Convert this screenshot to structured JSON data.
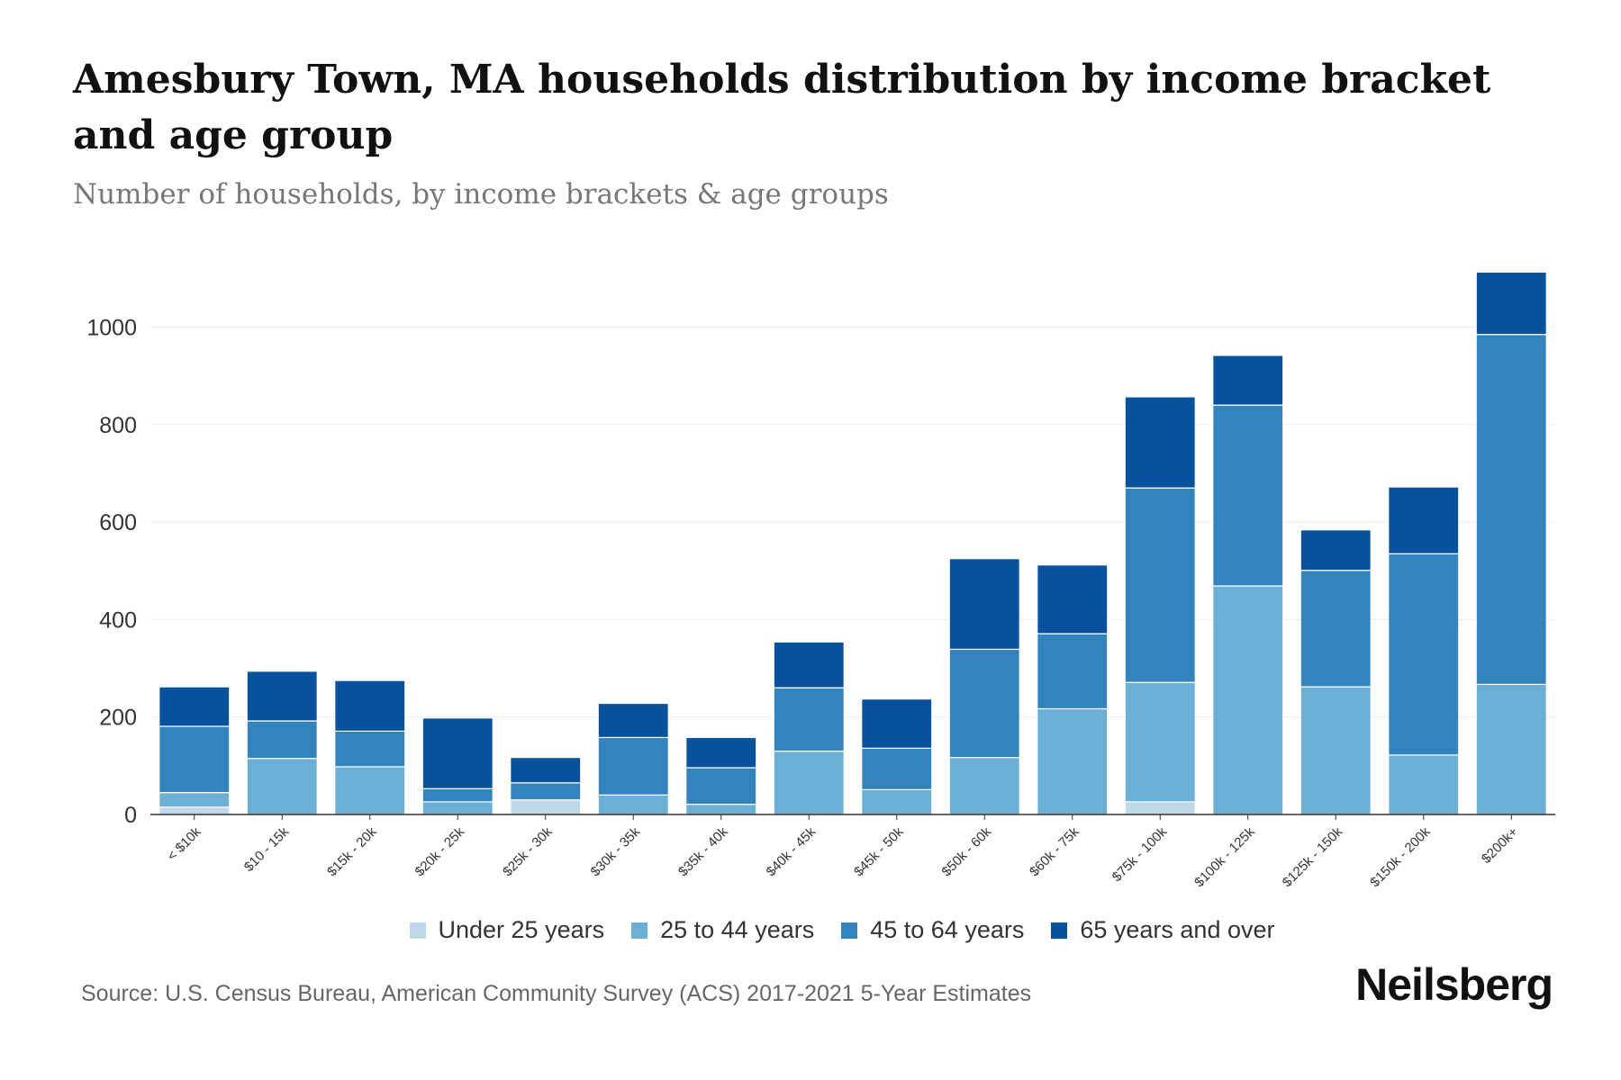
{
  "title": "Amesbury Town, MA households distribution by income bracket and age group",
  "subtitle": "Number of households, by income brackets & age groups",
  "source": "Source: U.S. Census Bureau, American Community Survey (ACS) 2017-2021 5-Year Estimates",
  "logo": "Neilsberg",
  "chart_data": {
    "type": "bar",
    "stacked": true,
    "title": "Amesbury Town, MA households distribution by income bracket and age group",
    "xlabel": "",
    "ylabel": "",
    "ylim": [
      0,
      1150
    ],
    "yticks": [
      0,
      200,
      400,
      600,
      800,
      1000
    ],
    "grid": true,
    "legend_position": "bottom",
    "categories": [
      "< $10k",
      "$10 - 15k",
      "$15k - 20k",
      "$20k - 25k",
      "$25k - 30k",
      "$30k - 35k",
      "$35k - 40k",
      "$40k - 45k",
      "$45k - 50k",
      "$50k - 60k",
      "$60k - 75k",
      "$75k - 100k",
      "$100k - 125k",
      "$125k - 150k",
      "$150k - 200k",
      "$200k+"
    ],
    "series": [
      {
        "name": "Under 25 years",
        "color": "#c0d9ea",
        "values": [
          15,
          0,
          0,
          0,
          30,
          0,
          0,
          0,
          0,
          0,
          0,
          26,
          0,
          0,
          0,
          0
        ]
      },
      {
        "name": "25 to 44 years",
        "color": "#6baed6",
        "values": [
          30,
          115,
          98,
          26,
          0,
          40,
          21,
          130,
          51,
          117,
          217,
          245,
          469,
          262,
          122,
          267
        ]
      },
      {
        "name": "45 to 64 years",
        "color": "#3383bd",
        "values": [
          136,
          77,
          73,
          27,
          35,
          118,
          75,
          130,
          85,
          222,
          154,
          399,
          371,
          239,
          413,
          718
        ]
      },
      {
        "name": "65 years and over",
        "color": "#08519c",
        "values": [
          81,
          102,
          104,
          145,
          52,
          70,
          62,
          94,
          101,
          186,
          141,
          187,
          102,
          83,
          137,
          128
        ]
      }
    ]
  }
}
